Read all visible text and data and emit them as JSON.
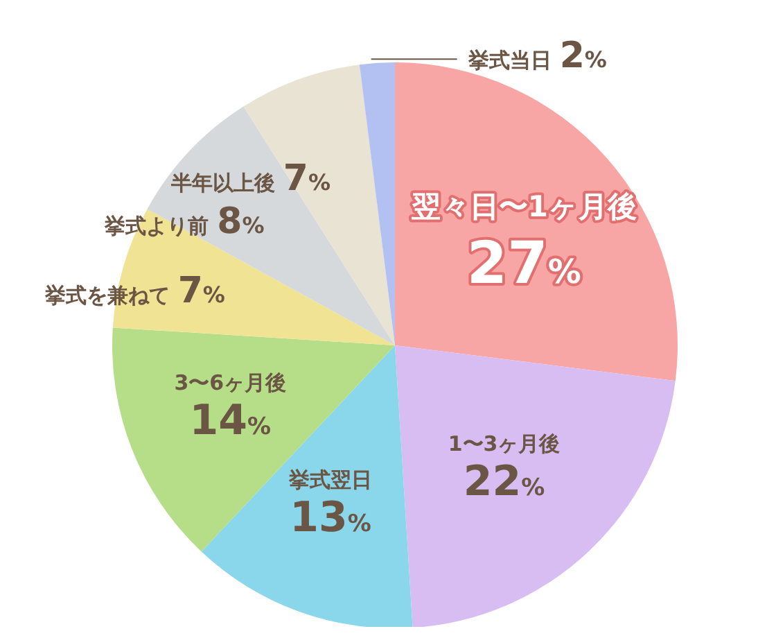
{
  "chart_data": {
    "type": "pie",
    "categories": [
      "翌々日〜1ヶ月後",
      "1〜3ヶ月後",
      "挙式翌日",
      "3〜6ヶ月後",
      "挙式を兼ねて",
      "挙式より前",
      "半年以上後",
      "挙式当日"
    ],
    "values": [
      27,
      22,
      13,
      14,
      7,
      8,
      7,
      2
    ],
    "value_labels": [
      "27%",
      "22%",
      "13%",
      "14%",
      "7%",
      "8%",
      "7%",
      "2%"
    ],
    "colors": [
      "#f8a5a5",
      "#d8bdf2",
      "#8ad6ea",
      "#b6de88",
      "#f1e394",
      "#d6d9dc",
      "#e9e3d3",
      "#b3c0f2"
    ],
    "legend": false
  }
}
